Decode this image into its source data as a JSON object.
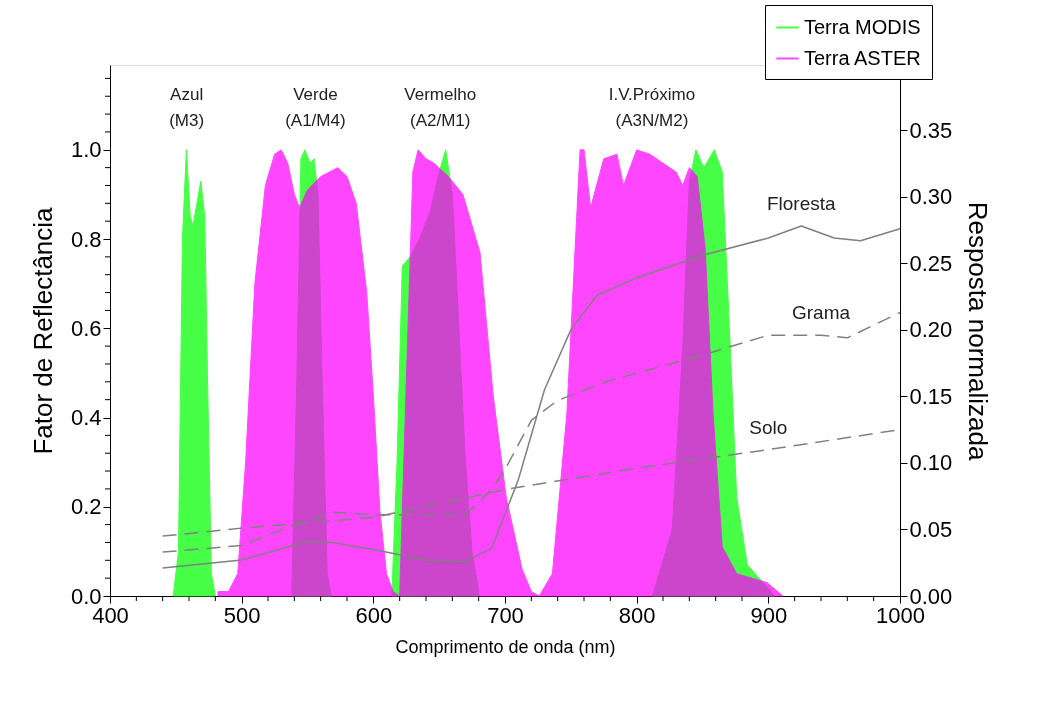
{
  "chart_data": {
    "type": "area",
    "xlabel": "Comprimento de onda (nm)",
    "ylabel": "Fator de Reflectância",
    "y2label": "Resposta normalizada",
    "xlim": [
      400,
      1000
    ],
    "ylim": [
      0,
      1.19
    ],
    "y2lim": [
      0,
      0.399
    ],
    "xticks": [
      400,
      {
        "value": 420,
        "label": null
      },
      {
        "value": 440,
        "label": null
      },
      {
        "value": 460,
        "label": null
      },
      {
        "value": 480,
        "label": null
      },
      500,
      {
        "value": 520,
        "label": null
      },
      {
        "value": 540,
        "label": null
      },
      {
        "value": 560,
        "label": null
      },
      {
        "value": 580,
        "label": null
      },
      600,
      {
        "value": 620,
        "label": null
      },
      {
        "value": 640,
        "label": null
      },
      {
        "value": 660,
        "label": null
      },
      {
        "value": 680,
        "label": null
      },
      700,
      {
        "value": 720,
        "label": null
      },
      {
        "value": 740,
        "label": null
      },
      {
        "value": 760,
        "label": null
      },
      {
        "value": 780,
        "label": null
      },
      800,
      {
        "value": 820,
        "label": null
      },
      {
        "value": 840,
        "label": null
      },
      {
        "value": 860,
        "label": null
      },
      {
        "value": 880,
        "label": null
      },
      900,
      {
        "value": 920,
        "label": null
      },
      {
        "value": 940,
        "label": null
      },
      {
        "value": 960,
        "label": null
      },
      {
        "value": 980,
        "label": null
      },
      1000
    ],
    "yticks": [
      {
        "value": 0,
        "label": "0.0"
      },
      {
        "value": 0.04,
        "label": null
      },
      {
        "value": 0.08,
        "label": null
      },
      {
        "value": 0.12,
        "label": null
      },
      {
        "value": 0.16,
        "label": null
      },
      {
        "value": 0.2,
        "label": "0.2"
      },
      {
        "value": 0.24,
        "label": null
      },
      {
        "value": 0.28,
        "label": null
      },
      {
        "value": 0.32,
        "label": null
      },
      {
        "value": 0.36,
        "label": null
      },
      {
        "value": 0.4,
        "label": "0.4"
      },
      {
        "value": 0.44,
        "label": null
      },
      {
        "value": 0.48,
        "label": null
      },
      {
        "value": 0.52,
        "label": null
      },
      {
        "value": 0.56,
        "label": null
      },
      {
        "value": 0.6,
        "label": "0.6"
      },
      {
        "value": 0.64,
        "label": null
      },
      {
        "value": 0.68,
        "label": null
      },
      {
        "value": 0.72,
        "label": null
      },
      {
        "value": 0.76,
        "label": null
      },
      {
        "value": 0.8,
        "label": "0.8"
      },
      {
        "value": 0.84,
        "label": null
      },
      {
        "value": 0.88,
        "label": null
      },
      {
        "value": 0.92,
        "label": null
      },
      {
        "value": 0.96,
        "label": null
      },
      {
        "value": 1.0,
        "label": "1.0"
      },
      {
        "value": 1.04,
        "label": null
      },
      {
        "value": 1.08,
        "label": null
      },
      {
        "value": 1.12,
        "label": null
      },
      {
        "value": 1.16,
        "label": null
      }
    ],
    "y2ticks": [
      {
        "value": 0,
        "label": "0.00"
      },
      0.05,
      {
        "value": 0.1,
        "label": "0.10"
      },
      0.15,
      {
        "value": 0.2,
        "label": "0.20"
      },
      0.25,
      {
        "value": 0.3,
        "label": "0.30"
      },
      0.35
    ],
    "legend": "top right",
    "grid": false,
    "series": [
      {
        "name": "Terra MODIS",
        "color": "#00ff00",
        "x": [
          448,
          452,
          455,
          458,
          461,
          463,
          466,
          469,
          472,
          474,
          477,
          480,
          500,
          538,
          542,
          545,
          548,
          552,
          555,
          558,
          561,
          565,
          568,
          600,
          614,
          618,
          622,
          628,
          635,
          643,
          650,
          655,
          660,
          665,
          670,
          675,
          680,
          750,
          812,
          827,
          835,
          840,
          845,
          851,
          859,
          865,
          870,
          876,
          884,
          896,
          905
        ],
        "values": [
          0,
          0.1,
          0.8,
          1.0,
          0.85,
          0.83,
          0.88,
          0.93,
          0.85,
          0.5,
          0.05,
          0,
          null,
          0,
          0.5,
          0.98,
          1.0,
          0.97,
          0.98,
          0.9,
          0.5,
          0.05,
          0,
          null,
          0,
          0.3,
          0.74,
          0.76,
          0.8,
          0.86,
          0.95,
          1.0,
          0.9,
          0.6,
          0.3,
          0.1,
          0.01,
          null,
          0,
          0.15,
          0.56,
          0.93,
          1.0,
          0.96,
          1.0,
          0.95,
          0.63,
          0.22,
          0.07,
          0.03,
          0
        ]
      },
      {
        "name": "Terra ASTER",
        "color": "#ff00ff",
        "x": [
          482,
          490,
          497,
          503,
          510,
          518,
          525,
          530,
          535,
          540,
          544,
          550,
          560,
          573,
          580,
          587,
          595,
          600,
          605,
          610,
          615,
          620,
          630,
          634,
          640,
          646,
          657,
          668,
          681,
          691,
          701,
          713,
          720,
          726,
          736,
          747,
          757,
          760,
          765,
          775,
          785,
          790,
          800,
          810,
          820,
          830,
          835,
          840,
          846,
          852,
          858,
          865,
          876,
          899,
          911
        ],
        "values": [
          0.01,
          0.01,
          0.05,
          0.3,
          0.7,
          0.92,
          0.99,
          1.0,
          0.97,
          0.9,
          0.87,
          0.91,
          0.94,
          0.96,
          0.94,
          0.88,
          0.68,
          0.45,
          0.19,
          0.05,
          0.01,
          0,
          0.95,
          1.0,
          0.98,
          0.97,
          0.94,
          0.9,
          0.77,
          0.45,
          0.22,
          0.06,
          0.01,
          0,
          0.05,
          0.41,
          1.0,
          1.0,
          0.87,
          0.98,
          0.99,
          0.92,
          1.0,
          0.99,
          0.97,
          0.95,
          0.92,
          0.96,
          0.94,
          0.78,
          0.41,
          0.11,
          0.05,
          0.03,
          0
        ]
      },
      {
        "name": "Floresta",
        "type": "line",
        "axis": "y2",
        "color": "#808080",
        "line_style": "solid",
        "x": [
          440,
          500,
          550,
          570,
          600,
          640,
          670,
          690,
          710,
          730,
          750,
          770,
          800,
          850,
          900,
          925,
          950,
          970,
          1000
        ],
        "values": [
          0.021,
          0.027,
          0.041,
          0.04,
          0.035,
          0.027,
          0.026,
          0.036,
          0.087,
          0.155,
          0.2,
          0.226,
          0.239,
          0.256,
          0.269,
          0.278,
          0.269,
          0.267,
          0.276
        ]
      },
      {
        "name": "Grama",
        "type": "line",
        "axis": "y2",
        "color": "#808080",
        "line_style": "dashed",
        "x": [
          440,
          500,
          550,
          570,
          600,
          640,
          670,
          690,
          700,
          720,
          740,
          780,
          850,
          900,
          940,
          960,
          1000
        ],
        "values": [
          0.033,
          0.038,
          0.057,
          0.063,
          0.061,
          0.061,
          0.061,
          0.08,
          0.095,
          0.132,
          0.147,
          0.162,
          0.181,
          0.196,
          0.196,
          0.194,
          0.213
        ]
      },
      {
        "name": "Solo",
        "type": "line",
        "axis": "y2",
        "color": "#808080",
        "line_style": "dashed",
        "x": [
          440,
          500,
          600,
          700,
          800,
          900,
          1000
        ],
        "values": [
          0.045,
          0.051,
          0.059,
          0.08,
          0.096,
          0.11,
          0.125
        ]
      }
    ],
    "annotations": [
      "Azul\n(M3)",
      "Verde\n(A1/M4)",
      "Vermelho\n(A2/M1)",
      "I.V.Próximo\n(A3N/M2)"
    ]
  }
}
